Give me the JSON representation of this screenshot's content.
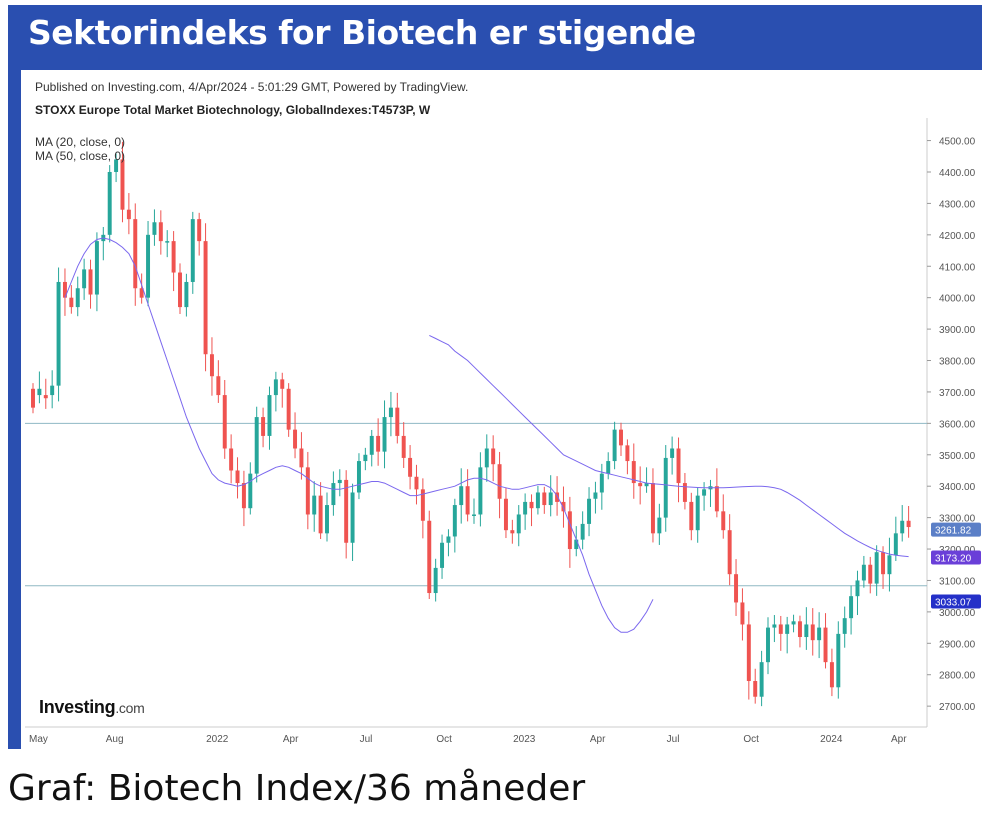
{
  "banner_title": "Sektorindeks for Biotech er stigende",
  "caption": "Graf: Biotech Index/36 måneder",
  "meta_line": "Published on Investing.com, 4/Apr/2024 - 5:01:29 GMT, Powered by TradingView.",
  "symbol_line": "STOXX Europe Total Market Biotechnology, GlobalIndexes:T4573P, W",
  "ma_labels": [
    "MA (20, close, 0)",
    "MA (50, close, 0)"
  ],
  "logo": {
    "brand": "Investing",
    "suffix": ".com"
  },
  "colors": {
    "up": "#26a69a",
    "down": "#ef5350",
    "ma": "#7b68ee",
    "hline": "#8fb8c4",
    "banner": "#2a4fb0",
    "badge_last": "#5b7fc7",
    "badge_ma": "#6a3fd8",
    "badge_line": "#2430c8"
  },
  "chart_data": {
    "type": "candlestick",
    "x_ticks": [
      "May",
      "Aug",
      "2022",
      "Apr",
      "Jul",
      "Oct",
      "2023",
      "Apr",
      "Jul",
      "Oct",
      "2024",
      "Apr"
    ],
    "y_ticks": [
      2700,
      2800,
      2900,
      3000,
      3100,
      3200,
      3300,
      3400,
      3500,
      3600,
      3700,
      3800,
      3900,
      4000,
      4100,
      4200,
      4300,
      4400,
      4500
    ],
    "ylim": [
      2640,
      4540
    ],
    "horizontal_lines": [
      3600,
      3083
    ],
    "badges": [
      {
        "label": "3261.82",
        "value": 3261.82
      },
      {
        "label": "3173.20",
        "value": 3173.2
      },
      {
        "label": "3033.07",
        "value": 3033.07
      }
    ],
    "ma20": [
      4000,
      4050,
      4100,
      4140,
      4170,
      4185,
      4190,
      4185,
      4175,
      4160,
      4140,
      4100,
      4040,
      3980,
      3920,
      3860,
      3800,
      3740,
      3680,
      3620,
      3570,
      3520,
      3480,
      3440,
      3420,
      3410,
      3405,
      3400,
      3405,
      3415,
      3430,
      3440,
      3450,
      3460,
      3465,
      3460,
      3450,
      3440,
      3425,
      3410,
      3400,
      3395,
      3390,
      3390,
      3395,
      3400,
      3405,
      3410,
      3415,
      3415,
      3410,
      3400,
      3390,
      3380,
      3370,
      3370,
      3375,
      3380,
      3385,
      3390,
      3395,
      3400,
      3410,
      3420,
      3425,
      3425,
      3420,
      3410,
      3400,
      3395,
      3390,
      3390,
      3395,
      3400,
      3405,
      3405,
      3395,
      3370,
      3330,
      3280,
      3230,
      3180,
      3120,
      3070,
      3020,
      2980,
      2950,
      2935,
      2935,
      2945,
      2970,
      3000,
      3040
    ],
    "ma20_start": 25,
    "ma50": [
      3880,
      3870,
      3860,
      3850,
      3830,
      3815,
      3800,
      3780,
      3760,
      3740,
      3720,
      3700,
      3680,
      3660,
      3640,
      3620,
      3600,
      3580,
      3560,
      3540,
      3520,
      3500,
      3490,
      3480,
      3470,
      3460,
      3450,
      3445,
      3440,
      3435,
      3430,
      3425,
      3420,
      3415,
      3410,
      3408,
      3406,
      3404,
      3402,
      3400,
      3398,
      3397,
      3396,
      3395,
      3395,
      3395,
      3395,
      3396,
      3397,
      3398,
      3399,
      3400,
      3400,
      3398,
      3395,
      3390,
      3380,
      3368,
      3355,
      3340,
      3325,
      3310,
      3295,
      3280,
      3265,
      3250,
      3238,
      3226,
      3215,
      3205,
      3196,
      3190,
      3184,
      3180,
      3178,
      3176
    ],
    "ma50_start": 62,
    "candles": [
      [
        3710,
        3650
      ],
      [
        3690,
        3710
      ],
      [
        3690,
        3680
      ],
      [
        3690,
        3720
      ],
      [
        3720,
        4050
      ],
      [
        4050,
        4000
      ],
      [
        4000,
        3970
      ],
      [
        3970,
        4030
      ],
      [
        4030,
        4090
      ],
      [
        4090,
        4010
      ],
      [
        4010,
        4180
      ],
      [
        4180,
        4200
      ],
      [
        4200,
        4400
      ],
      [
        4400,
        4440
      ],
      [
        4440,
        4280
      ],
      [
        4280,
        4250
      ],
      [
        4250,
        4030
      ],
      [
        4030,
        4000
      ],
      [
        4000,
        4200
      ],
      [
        4200,
        4240
      ],
      [
        4240,
        4180
      ],
      [
        4180,
        4180
      ],
      [
        4180,
        4080
      ],
      [
        4080,
        3970
      ],
      [
        3970,
        4050
      ],
      [
        4050,
        4250
      ],
      [
        4250,
        4180
      ],
      [
        4180,
        3820
      ],
      [
        3820,
        3750
      ],
      [
        3750,
        3690
      ],
      [
        3690,
        3520
      ],
      [
        3520,
        3450
      ],
      [
        3450,
        3410
      ],
      [
        3410,
        3330
      ],
      [
        3330,
        3440
      ],
      [
        3440,
        3620
      ],
      [
        3620,
        3560
      ],
      [
        3560,
        3690
      ],
      [
        3690,
        3740
      ],
      [
        3740,
        3710
      ],
      [
        3710,
        3580
      ],
      [
        3580,
        3520
      ],
      [
        3520,
        3460
      ],
      [
        3460,
        3310
      ],
      [
        3310,
        3370
      ],
      [
        3370,
        3250
      ],
      [
        3250,
        3340
      ],
      [
        3340,
        3410
      ],
      [
        3410,
        3420
      ],
      [
        3420,
        3220
      ],
      [
        3220,
        3380
      ],
      [
        3380,
        3480
      ],
      [
        3480,
        3500
      ],
      [
        3500,
        3560
      ],
      [
        3560,
        3510
      ],
      [
        3510,
        3620
      ],
      [
        3620,
        3650
      ],
      [
        3650,
        3560
      ],
      [
        3560,
        3490
      ],
      [
        3490,
        3430
      ],
      [
        3430,
        3390
      ],
      [
        3390,
        3290
      ],
      [
        3290,
        3060
      ],
      [
        3060,
        3140
      ],
      [
        3140,
        3220
      ],
      [
        3220,
        3240
      ],
      [
        3240,
        3340
      ],
      [
        3340,
        3400
      ],
      [
        3400,
        3310
      ],
      [
        3310,
        3310
      ],
      [
        3310,
        3460
      ],
      [
        3460,
        3520
      ],
      [
        3520,
        3470
      ],
      [
        3470,
        3360
      ],
      [
        3360,
        3260
      ],
      [
        3260,
        3250
      ],
      [
        3250,
        3310
      ],
      [
        3310,
        3350
      ],
      [
        3350,
        3330
      ],
      [
        3330,
        3380
      ],
      [
        3380,
        3340
      ],
      [
        3340,
        3380
      ],
      [
        3380,
        3350
      ],
      [
        3350,
        3320
      ],
      [
        3320,
        3200
      ],
      [
        3200,
        3230
      ],
      [
        3230,
        3280
      ],
      [
        3280,
        3360
      ],
      [
        3360,
        3380
      ],
      [
        3380,
        3440
      ],
      [
        3440,
        3480
      ],
      [
        3480,
        3580
      ],
      [
        3580,
        3530
      ],
      [
        3530,
        3480
      ],
      [
        3480,
        3410
      ],
      [
        3410,
        3400
      ],
      [
        3400,
        3410
      ],
      [
        3410,
        3250
      ],
      [
        3250,
        3300
      ],
      [
        3300,
        3490
      ],
      [
        3490,
        3520
      ],
      [
        3520,
        3410
      ],
      [
        3410,
        3350
      ],
      [
        3350,
        3260
      ],
      [
        3260,
        3370
      ],
      [
        3370,
        3390
      ],
      [
        3390,
        3400
      ],
      [
        3400,
        3320
      ],
      [
        3320,
        3260
      ],
      [
        3260,
        3120
      ],
      [
        3120,
        3030
      ],
      [
        3030,
        2960
      ],
      [
        2960,
        2780
      ],
      [
        2780,
        2730
      ],
      [
        2730,
        2840
      ],
      [
        2840,
        2950
      ],
      [
        2950,
        2960
      ],
      [
        2960,
        2930
      ],
      [
        2930,
        2960
      ],
      [
        2960,
        2970
      ],
      [
        2970,
        2920
      ],
      [
        2920,
        2960
      ],
      [
        2960,
        2910
      ],
      [
        2910,
        2950
      ],
      [
        2950,
        2840
      ],
      [
        2840,
        2760
      ],
      [
        2760,
        2930
      ],
      [
        2930,
        2980
      ],
      [
        2980,
        3050
      ],
      [
        3050,
        3100
      ],
      [
        3100,
        3150
      ],
      [
        3150,
        3090
      ],
      [
        3090,
        3190
      ],
      [
        3190,
        3120
      ],
      [
        3120,
        3180
      ],
      [
        3180,
        3250
      ],
      [
        3250,
        3290
      ],
      [
        3290,
        3270
      ]
    ]
  }
}
